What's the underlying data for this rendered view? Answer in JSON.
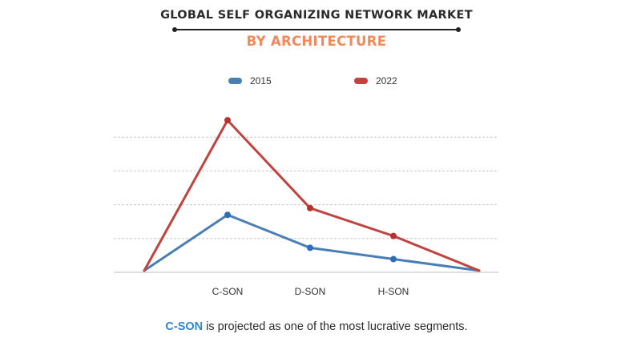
{
  "header": {
    "title": "GLOBAL SELF ORGANIZING NETWORK MARKET",
    "subtitle": "BY ARCHITECTURE"
  },
  "caption": {
    "highlight": "C-SON",
    "text": " is projected as one of the most lucrative segments."
  },
  "colors": {
    "series_2015": "#4a7fb5",
    "series_2022": "#c0433f",
    "point_2015": "#2f6db8",
    "point_2022": "#b8312c",
    "subtitle": "#f0895c",
    "caption_highlight": "#2f86c8"
  },
  "chart_data": {
    "type": "line",
    "categories": [
      "",
      "C-SON",
      "D-SON",
      "H-SON",
      ""
    ],
    "series": [
      {
        "name": "2015",
        "values": [
          0.1,
          3.4,
          1.45,
          0.78,
          0.1
        ]
      },
      {
        "name": "2022",
        "values": [
          0.1,
          9.0,
          3.8,
          2.15,
          0.1
        ]
      }
    ],
    "ylim": [
      0,
      10
    ],
    "gridlines": [
      2,
      4,
      6,
      8
    ],
    "axis_tick_labels_shown": false,
    "legend_position": "top-center"
  }
}
